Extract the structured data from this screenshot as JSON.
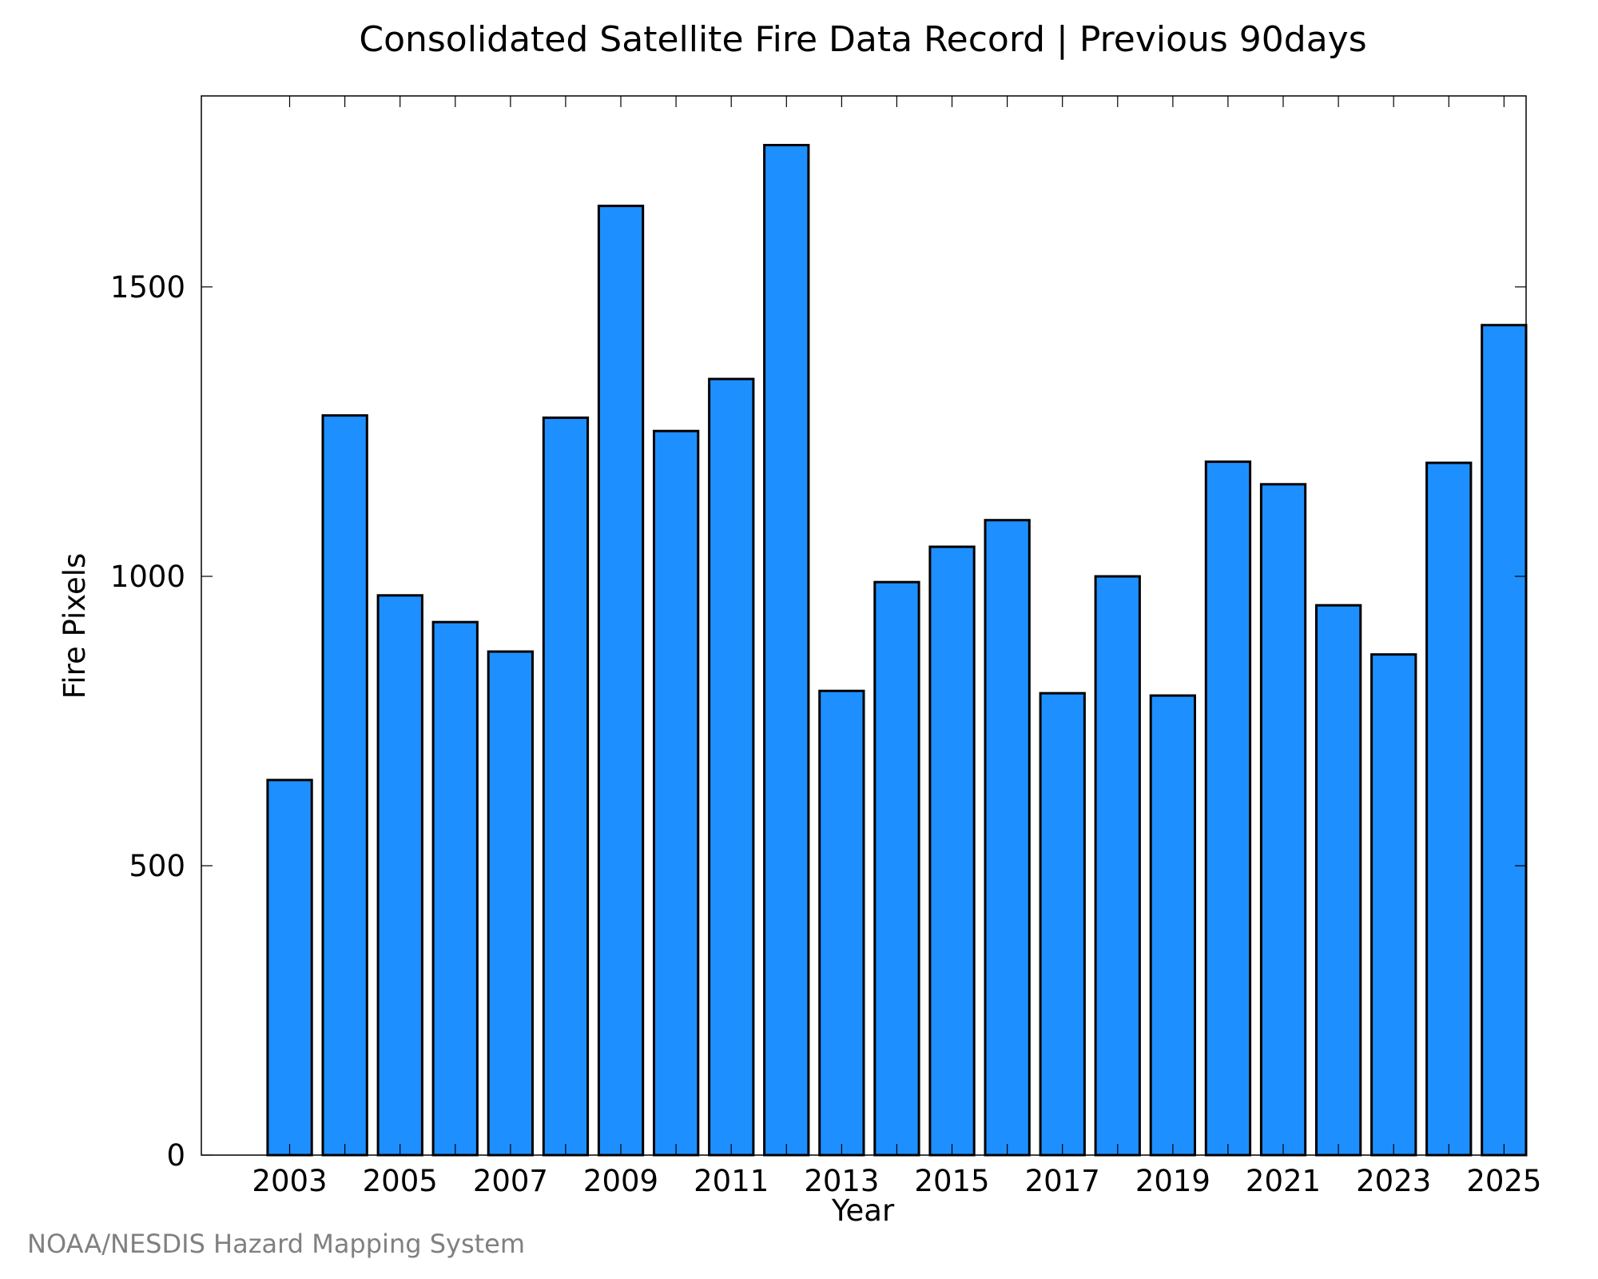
{
  "chart_data": {
    "type": "bar",
    "title": "Consolidated Satellite Fire Data Record | Previous 90days",
    "xlabel": "Year",
    "ylabel": "Fire Pixels",
    "x": [
      2003,
      2004,
      2005,
      2006,
      2007,
      2008,
      2009,
      2010,
      2011,
      2012,
      2013,
      2014,
      2015,
      2016,
      2017,
      2018,
      2019,
      2020,
      2021,
      2022,
      2023,
      2024,
      2025
    ],
    "values": [
      648,
      1278,
      967,
      921,
      870,
      1274,
      1640,
      1251,
      1341,
      1745,
      802,
      990,
      1051,
      1097,
      798,
      1000,
      794,
      1198,
      1159,
      950,
      865,
      1196,
      1434
    ],
    "xticks": [
      2003,
      2005,
      2007,
      2009,
      2011,
      2013,
      2015,
      2017,
      2019,
      2021,
      2023,
      2025
    ],
    "yticks": [
      0,
      500,
      1000,
      1500
    ],
    "xlim": [
      2001.4,
      2025.4
    ],
    "ylim": [
      0,
      1830
    ],
    "grid": false,
    "legend": "none",
    "colors": {
      "bar_fill": "#1E8FFF",
      "bar_stroke": "#000000",
      "frame": "#000000"
    }
  },
  "footer": {
    "credit": "NOAA/NESDIS Hazard Mapping System",
    "credit_color": "#808080"
  }
}
